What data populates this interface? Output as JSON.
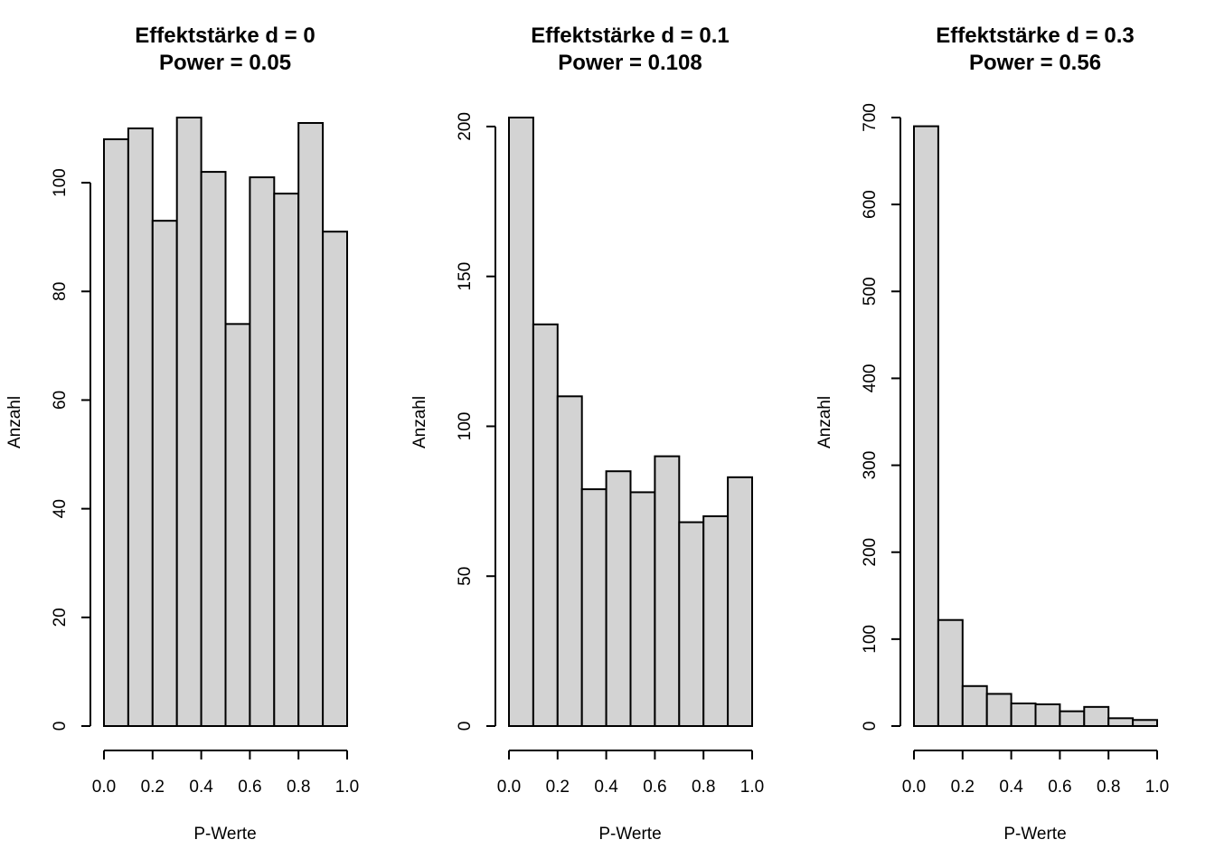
{
  "chart_data": [
    {
      "type": "bar",
      "title": "Effektstärke d = 0",
      "subtitle": "Power = 0.05",
      "xlabel": "P-Werte",
      "ylabel": "Anzahl",
      "bin_edges": [
        0.0,
        0.1,
        0.2,
        0.3,
        0.4,
        0.5,
        0.6,
        0.7,
        0.8,
        0.9,
        1.0
      ],
      "values": [
        108,
        110,
        93,
        112,
        102,
        74,
        101,
        98,
        111,
        91
      ],
      "xlim": [
        0,
        1
      ],
      "ylim": [
        0,
        112
      ],
      "x_ticks": [
        "0.0",
        "0.2",
        "0.4",
        "0.6",
        "0.8",
        "1.0"
      ],
      "y_ticks": [
        "0",
        "20",
        "40",
        "60",
        "80",
        "100"
      ],
      "grid": false
    },
    {
      "type": "bar",
      "title": "Effektstärke d = 0.1",
      "subtitle": "Power = 0.108",
      "xlabel": "P-Werte",
      "ylabel": "Anzahl",
      "bin_edges": [
        0.0,
        0.1,
        0.2,
        0.3,
        0.4,
        0.5,
        0.6,
        0.7,
        0.8,
        0.9,
        1.0
      ],
      "values": [
        203,
        134,
        110,
        79,
        85,
        78,
        90,
        68,
        70,
        83
      ],
      "xlim": [
        0,
        1
      ],
      "ylim": [
        0,
        203
      ],
      "x_ticks": [
        "0.0",
        "0.2",
        "0.4",
        "0.6",
        "0.8",
        "1.0"
      ],
      "y_ticks": [
        "0",
        "50",
        "100",
        "150",
        "200"
      ],
      "grid": false
    },
    {
      "type": "bar",
      "title": "Effektstärke d = 0.3",
      "subtitle": "Power = 0.56",
      "xlabel": "P-Werte",
      "ylabel": "Anzahl",
      "bin_edges": [
        0.0,
        0.1,
        0.2,
        0.3,
        0.4,
        0.5,
        0.6,
        0.7,
        0.8,
        0.9,
        1.0
      ],
      "values": [
        690,
        122,
        46,
        37,
        26,
        25,
        17,
        22,
        9,
        7
      ],
      "xlim": [
        0,
        1
      ],
      "ylim": [
        0,
        700
      ],
      "x_ticks": [
        "0.0",
        "0.2",
        "0.4",
        "0.6",
        "0.8",
        "1.0"
      ],
      "y_ticks": [
        "0",
        "100",
        "200",
        "300",
        "400",
        "500",
        "600",
        "700"
      ],
      "grid": false
    }
  ]
}
